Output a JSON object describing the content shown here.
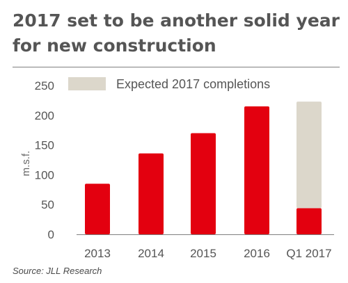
{
  "title": "2017 set to be another solid year for new construction",
  "source": "Source: JLL Research",
  "colors": {
    "bar": "#e3000f",
    "expected": "#dcd7cb",
    "text": "#555555",
    "axis": "#7f7f7f"
  },
  "chart_data": {
    "type": "bar",
    "stacked": true,
    "categories": [
      "2013",
      "2014",
      "2015",
      "2016",
      "Q1 2017"
    ],
    "series": [
      {
        "name": "",
        "values": [
          85,
          136,
          170,
          215,
          44
        ]
      },
      {
        "name": "Expected 2017 completions",
        "values": [
          0,
          0,
          0,
          0,
          179
        ]
      }
    ],
    "ylabel": "m.s.f.",
    "ylim": [
      0,
      250
    ],
    "yticks": [
      0,
      50,
      100,
      150,
      200,
      250
    ],
    "legend": "top",
    "grid": false
  }
}
